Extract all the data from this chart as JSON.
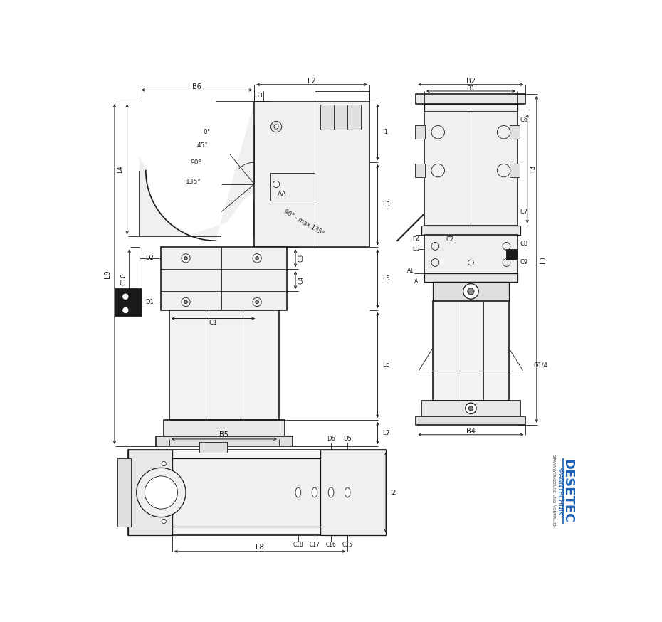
{
  "bg_color": "#ffffff",
  "line_color": "#1a1a1a",
  "blue_color": "#1a5fb4",
  "blue_dark": "#1a3a8a",
  "desetec": "DESETEC",
  "spanntechnik": "SPANNTECHNIK",
  "subtitle": "SPANNWERKZEUGE UND NORMALIEN"
}
